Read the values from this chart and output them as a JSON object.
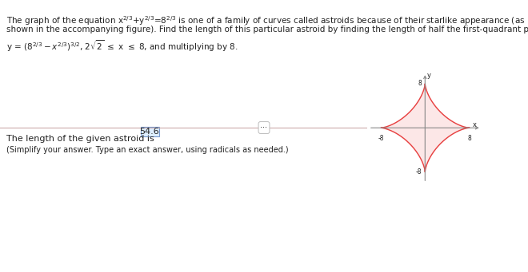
{
  "bg_color": "#ffffff",
  "text_color": "#222222",
  "blue_text_color": "#3333aa",
  "astroid_color": "#e84040",
  "axis_color": "#888888",
  "answer_box_bg": "#ddeeff",
  "answer_box_edge": "#7799cc",
  "separator_color": "#ccaaaa",
  "astroid_a": 8,
  "font_size_body": 7.5,
  "font_size_answer": 8.0,
  "font_size_small": 7.0,
  "line1": "The graph of the equation x",
  "line1b": "is one of a family of curves called astroids because of their starlike appearance (as",
  "line2": "shown in the accompanying figure). Find the length of this particular astroid by finding the length of half the first-quadrant portion,",
  "answer_prefix": "The length of the given astroid is",
  "answer_value": "54.6",
  "simplify": "(Simplify your answer. Type an exact answer, using radicals as needed.)"
}
